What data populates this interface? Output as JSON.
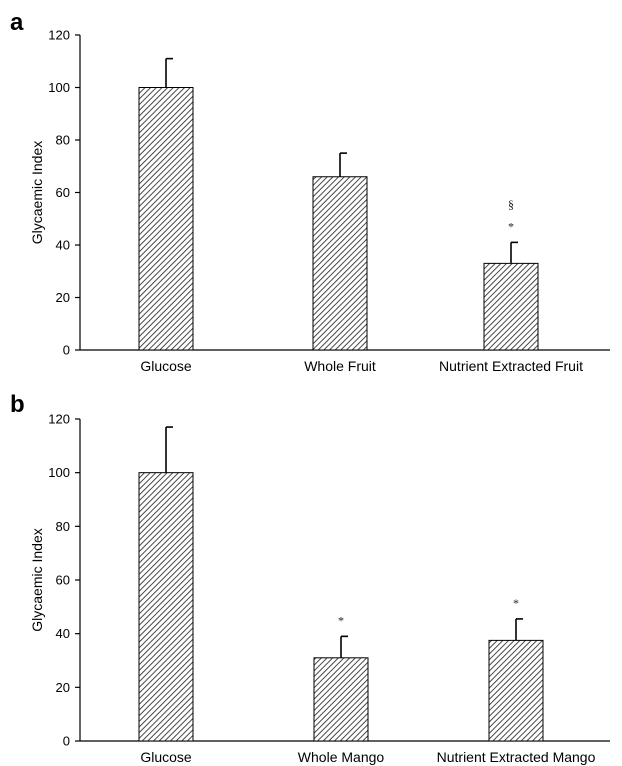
{
  "chart_data": [
    {
      "type": "bar",
      "panel_label": "a",
      "title": "",
      "xlabel": "",
      "ylabel": "Glycaemic Index",
      "ylim": [
        0,
        120
      ],
      "yticks": [
        0,
        20,
        40,
        60,
        80,
        100,
        120
      ],
      "categories": [
        "Glucose",
        "Whole Fruit",
        "Nutrient Extracted Fruit"
      ],
      "series": [
        {
          "values": [
            100,
            66,
            33
          ],
          "errors": [
            11,
            9,
            8
          ]
        }
      ],
      "annotations": [
        "",
        "",
        "§\n*"
      ],
      "grid": false,
      "legend": "none",
      "bar_fill": "diagonal-hatch"
    },
    {
      "type": "bar",
      "panel_label": "b",
      "title": "",
      "xlabel": "",
      "ylabel": "Glycaemic Index",
      "ylim": [
        0,
        120
      ],
      "yticks": [
        0,
        20,
        40,
        60,
        80,
        100,
        120
      ],
      "categories": [
        "Glucose",
        "Whole Mango",
        "Nutrient Extracted Mango"
      ],
      "series": [
        {
          "values": [
            100,
            31,
            37.5
          ],
          "errors": [
            17,
            8,
            8
          ]
        }
      ],
      "annotations": [
        "",
        "*",
        "*"
      ],
      "grid": false,
      "legend": "none",
      "bar_fill": "diagonal-hatch"
    }
  ]
}
